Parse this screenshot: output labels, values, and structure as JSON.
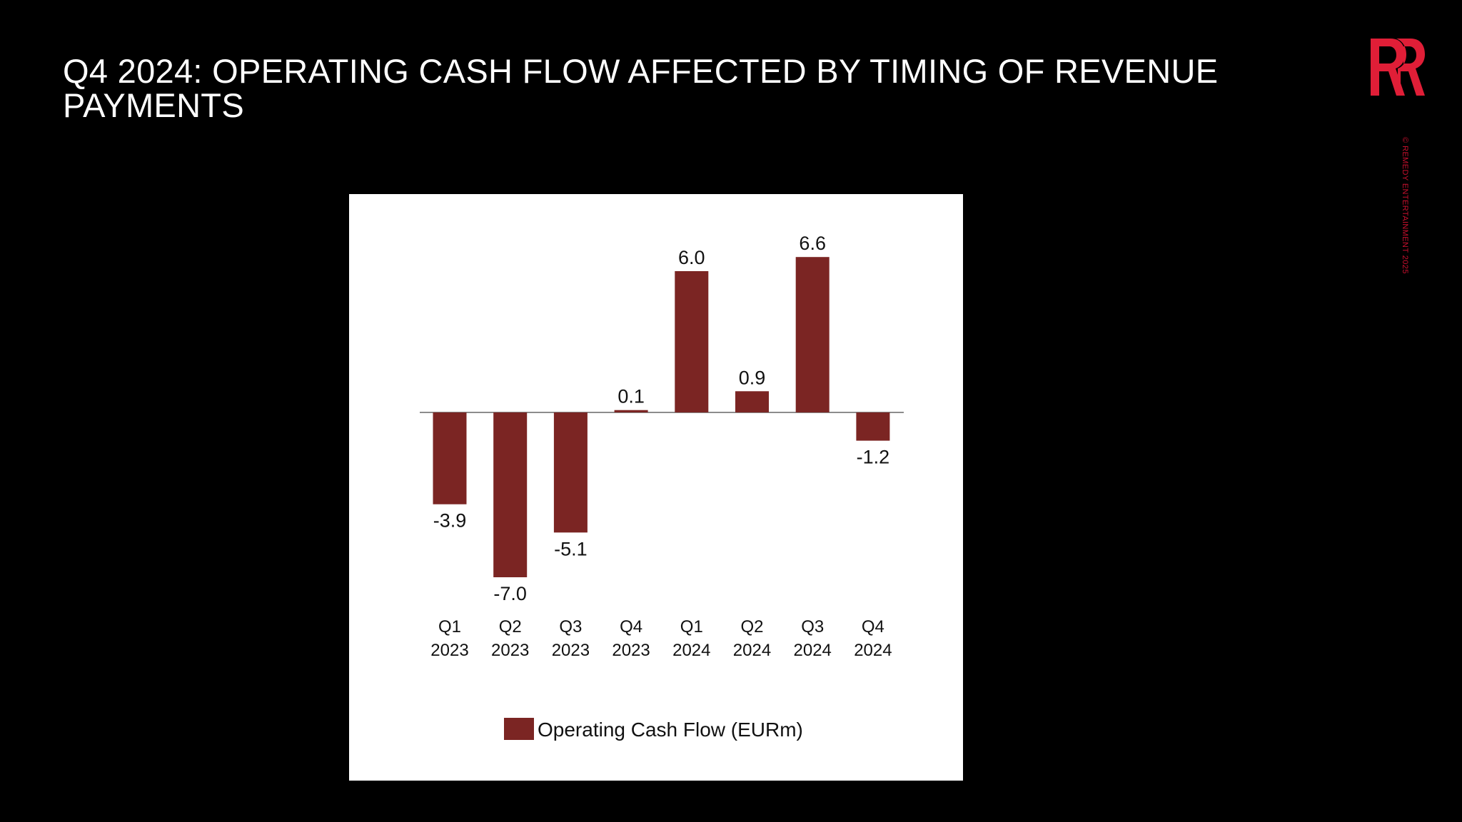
{
  "slide": {
    "title": "Q4 2024: OPERATING CASH FLOW AFFECTED BY TIMING OF REVENUE PAYMENTS",
    "copyright": "© REMEDY ENTERTAINMENT 2025"
  },
  "colors": {
    "background": "#000000",
    "title_text": "#ffffff",
    "brand_red": "#e01e37",
    "bar": "#7b2523"
  },
  "chart_data": {
    "type": "bar",
    "categories": [
      [
        "Q1",
        "2023"
      ],
      [
        "Q2",
        "2023"
      ],
      [
        "Q3",
        "2023"
      ],
      [
        "Q4",
        "2023"
      ],
      [
        "Q1",
        "2024"
      ],
      [
        "Q2",
        "2024"
      ],
      [
        "Q3",
        "2024"
      ],
      [
        "Q4",
        "2024"
      ]
    ],
    "series": [
      {
        "name": "Operating Cash Flow (EURm)",
        "values": [
          -3.9,
          -7.0,
          -5.1,
          0.1,
          6.0,
          0.9,
          6.6,
          -1.2
        ],
        "labels": [
          "-3.9",
          "-7.0",
          "-5.1",
          "0.1",
          "6.0",
          "0.9",
          "6.6",
          "-1.2"
        ]
      }
    ],
    "ylim": [
      -7.0,
      6.6
    ],
    "grid": false,
    "zero_line": true,
    "legend": "bottom"
  }
}
